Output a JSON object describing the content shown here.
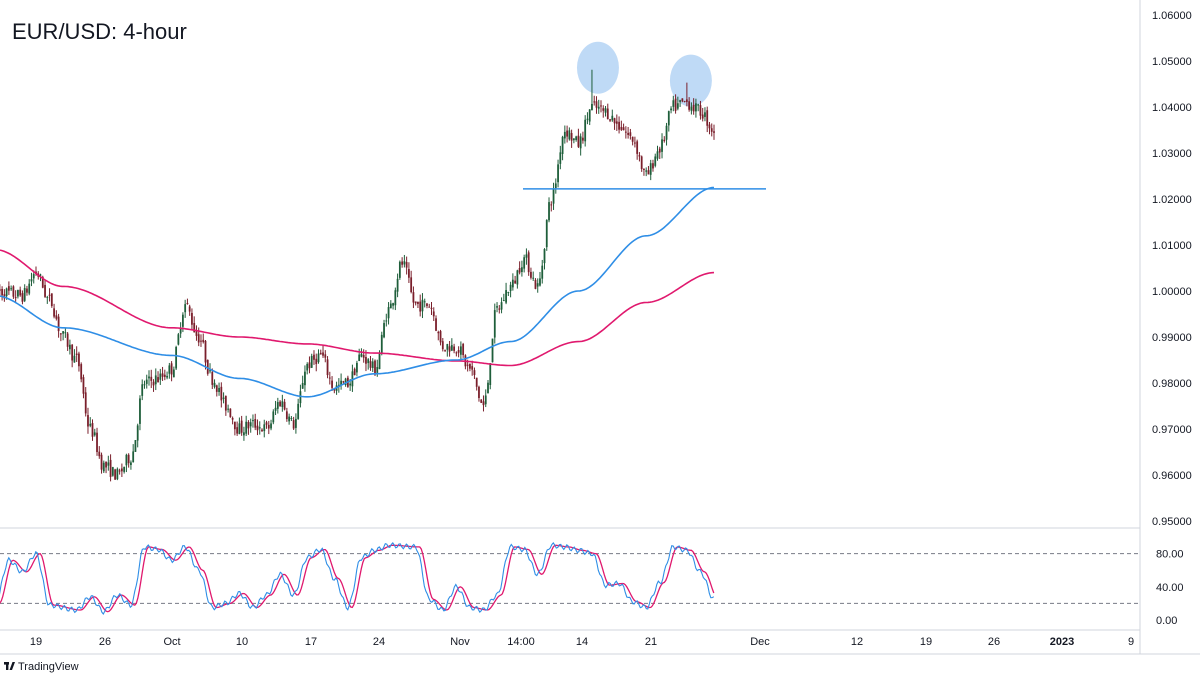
{
  "chart_data": {
    "type": "candlestick",
    "title": "EUR/USD: 4-hour",
    "brand": "TradingView",
    "colors": {
      "up": "#1e5e3a",
      "down": "#7a1f2b",
      "ma_fast": "#2f8ee6",
      "ma_slow": "#e0196e",
      "support": "#2f8ee6",
      "highlight": "#aacdf3",
      "stoch_k": "#2f8ee6",
      "stoch_d": "#e0196e"
    },
    "price_axis": {
      "ylim": [
        0.95,
        1.06
      ],
      "ticks": [
        "1.06000",
        "1.05000",
        "1.04000",
        "1.03000",
        "1.02000",
        "1.01000",
        "1.00000",
        "0.99000",
        "0.98000",
        "0.97000",
        "0.96000",
        "0.95000"
      ]
    },
    "time_axis": {
      "ticks": [
        "19",
        "26",
        "Oct",
        "10",
        "17",
        "24",
        "Nov",
        "14:00",
        "14",
        "21",
        "Dec",
        "12",
        "19",
        "26",
        "2023",
        "9"
      ]
    },
    "support_level": 1.0222,
    "double_top_peaks": [
      1.0481,
      1.0453
    ],
    "anchors": [
      [
        "2022-09-14",
        1.0
      ],
      [
        "2022-09-16",
        0.999
      ],
      [
        "2022-09-19",
        1.004
      ],
      [
        "2022-09-20",
        0.998
      ],
      [
        "2022-09-21",
        0.99
      ],
      [
        "2022-09-22",
        0.985
      ],
      [
        "2022-09-23",
        0.97
      ],
      [
        "2022-09-26",
        0.962
      ],
      [
        "2022-09-27",
        0.96
      ],
      [
        "2022-09-28",
        0.964
      ],
      [
        "2022-09-29",
        0.98
      ],
      [
        "2022-09-30",
        0.981
      ],
      [
        "2022-10-03",
        0.983
      ],
      [
        "2022-10-04",
        0.997
      ],
      [
        "2022-10-05",
        0.99
      ],
      [
        "2022-10-06",
        0.981
      ],
      [
        "2022-10-07",
        0.975
      ],
      [
        "2022-10-10",
        0.97
      ],
      [
        "2022-10-11",
        0.971
      ],
      [
        "2022-10-12",
        0.97
      ],
      [
        "2022-10-13",
        0.976
      ],
      [
        "2022-10-14",
        0.971
      ],
      [
        "2022-10-17",
        0.984
      ],
      [
        "2022-10-18",
        0.986
      ],
      [
        "2022-10-19",
        0.979
      ],
      [
        "2022-10-20",
        0.98
      ],
      [
        "2022-10-21",
        0.986
      ],
      [
        "2022-10-24",
        0.983
      ],
      [
        "2022-10-25",
        0.996
      ],
      [
        "2022-10-26",
        1.006
      ],
      [
        "2022-10-27",
        0.997
      ],
      [
        "2022-10-28",
        0.997
      ],
      [
        "2022-10-31",
        0.988
      ],
      [
        "2022-11-01",
        0.988
      ],
      [
        "2022-11-02",
        0.983
      ],
      [
        "2022-11-03",
        0.975
      ],
      [
        "2022-11-04",
        0.996
      ],
      [
        "2022-11-07",
        1.001
      ],
      [
        "2022-11-08",
        1.007
      ],
      [
        "2022-11-09",
        1.001
      ],
      [
        "2022-11-10",
        1.02
      ],
      [
        "2022-11-11",
        1.035
      ],
      [
        "2022-11-14",
        1.032
      ],
      [
        "2022-11-15",
        1.04
      ],
      [
        "2022-11-16",
        1.039
      ],
      [
        "2022-11-17",
        1.036
      ],
      [
        "2022-11-18",
        1.033
      ],
      [
        "2022-11-21",
        1.025
      ],
      [
        "2022-11-22",
        1.031
      ],
      [
        "2022-11-23",
        1.04
      ],
      [
        "2022-11-24",
        1.041
      ],
      [
        "2022-11-25",
        1.039
      ],
      [
        "2022-11-28",
        1.035
      ]
    ],
    "moving_average_fast_anchors": [
      [
        "2022-09-14",
        0.999
      ],
      [
        "2022-09-21",
        0.992
      ],
      [
        "2022-10-03",
        0.986
      ],
      [
        "2022-10-10",
        0.981
      ],
      [
        "2022-10-17",
        0.977
      ],
      [
        "2022-10-24",
        0.982
      ],
      [
        "2022-11-01",
        0.985
      ],
      [
        "2022-11-07",
        0.989
      ],
      [
        "2022-11-14",
        1.0
      ],
      [
        "2022-11-21",
        1.012
      ],
      [
        "2022-11-28",
        1.0225
      ]
    ],
    "moving_average_slow_anchors": [
      [
        "2022-09-14",
        1.009
      ],
      [
        "2022-09-21",
        1.001
      ],
      [
        "2022-10-03",
        0.992
      ],
      [
        "2022-10-10",
        0.99
      ],
      [
        "2022-10-17",
        0.9885
      ],
      [
        "2022-10-24",
        0.9865
      ],
      [
        "2022-11-01",
        0.9848
      ],
      [
        "2022-11-07",
        0.9838
      ],
      [
        "2022-11-14",
        0.989
      ],
      [
        "2022-11-21",
        0.9975
      ],
      [
        "2022-11-28",
        1.004
      ]
    ],
    "stochastic": {
      "ylim": [
        0,
        100
      ],
      "levels": [
        80,
        20
      ],
      "ticks": [
        "80.00",
        "40.00",
        "0.00"
      ],
      "anchors": [
        [
          "2022-09-14",
          20
        ],
        [
          "2022-09-15",
          72
        ],
        [
          "2022-09-16",
          58
        ],
        [
          "2022-09-19",
          80
        ],
        [
          "2022-09-20",
          18
        ],
        [
          "2022-09-22",
          12
        ],
        [
          "2022-09-23",
          28
        ],
        [
          "2022-09-26",
          10
        ],
        [
          "2022-09-27",
          30
        ],
        [
          "2022-09-28",
          18
        ],
        [
          "2022-09-29",
          88
        ],
        [
          "2022-09-30",
          85
        ],
        [
          "2022-10-03",
          72
        ],
        [
          "2022-10-04",
          88
        ],
        [
          "2022-10-05",
          60
        ],
        [
          "2022-10-06",
          15
        ],
        [
          "2022-10-07",
          20
        ],
        [
          "2022-10-10",
          32
        ],
        [
          "2022-10-11",
          15
        ],
        [
          "2022-10-12",
          30
        ],
        [
          "2022-10-13",
          55
        ],
        [
          "2022-10-14",
          30
        ],
        [
          "2022-10-17",
          75
        ],
        [
          "2022-10-18",
          85
        ],
        [
          "2022-10-19",
          50
        ],
        [
          "2022-10-20",
          15
        ],
        [
          "2022-10-21",
          75
        ],
        [
          "2022-10-24",
          84
        ],
        [
          "2022-10-25",
          90
        ],
        [
          "2022-10-27",
          88
        ],
        [
          "2022-10-28",
          25
        ],
        [
          "2022-10-31",
          12
        ],
        [
          "2022-11-01",
          40
        ],
        [
          "2022-11-02",
          15
        ],
        [
          "2022-11-03",
          12
        ],
        [
          "2022-11-04",
          30
        ],
        [
          "2022-11-07",
          88
        ],
        [
          "2022-11-08",
          85
        ],
        [
          "2022-11-09",
          55
        ],
        [
          "2022-11-10",
          90
        ],
        [
          "2022-11-11",
          88
        ],
        [
          "2022-11-14",
          84
        ],
        [
          "2022-11-15",
          80
        ],
        [
          "2022-11-16",
          42
        ],
        [
          "2022-11-17",
          44
        ],
        [
          "2022-11-18",
          22
        ],
        [
          "2022-11-21",
          15
        ],
        [
          "2022-11-22",
          45
        ],
        [
          "2022-11-23",
          88
        ],
        [
          "2022-11-24",
          84
        ],
        [
          "2022-11-25",
          58
        ],
        [
          "2022-11-28",
          25
        ]
      ]
    }
  }
}
